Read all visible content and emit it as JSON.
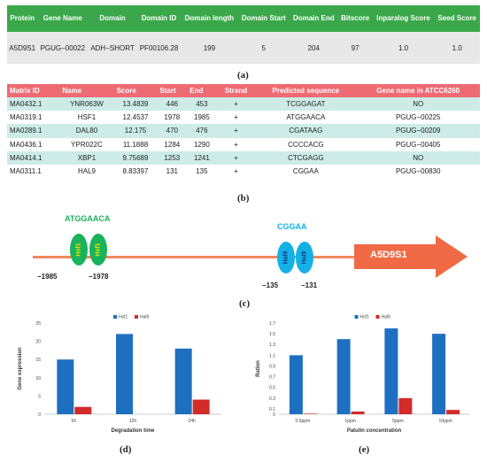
{
  "tableA": {
    "headers": [
      "Protein",
      "Gene Name",
      "Domain",
      "Domain ID",
      "Domain length",
      "Domain Start",
      "Domain End",
      "Bitscore",
      "Inparalog Score",
      "Seed Score"
    ],
    "row": [
      "A5D9S1",
      "PGUG−00022",
      "ADH−SHORT",
      "PF00106.28",
      "199",
      "5",
      "204",
      "97",
      "1.0",
      "1.0"
    ],
    "caption": "(a)"
  },
  "tableB": {
    "headers": [
      "Matrix ID",
      "Name",
      "Score",
      "Start",
      "End",
      "Strand",
      "Predicted sequence",
      "Gene name in ATCC6260"
    ],
    "rows": [
      [
        "MA0432.1",
        "YNR063W",
        "13.4839",
        "446",
        "453",
        "+",
        "TCGGAGAT",
        "NO"
      ],
      [
        "MA0319.1",
        "HSF1",
        "12.4537",
        "1978",
        "1985",
        "+",
        "ATGGAACA",
        "PGUG−00225"
      ],
      [
        "MA0289.1",
        "DAL80",
        "12.175",
        "470",
        "476",
        "+",
        "CGATAAG",
        "PGUG−00209"
      ],
      [
        "MA0436.1",
        "YPR022C",
        "11.1888",
        "1284",
        "1290",
        "+",
        "CCCCACG",
        "PGUG−00405"
      ],
      [
        "MA0414.1",
        "XBP1",
        "9.75689",
        "1253",
        "1241",
        "+",
        "CTCGAGG",
        "NO"
      ],
      [
        "MA0311.1",
        "HAL9",
        "8.83397",
        "131",
        "135",
        "+",
        "CGGAA",
        "PGUG−00830"
      ]
    ],
    "caption": "(b)"
  },
  "promoter": {
    "seq_left": "ATGGAACA",
    "seq_right": "CGGAA",
    "hsf_label": "Hsf1",
    "hal_label": "Hal9",
    "pos1": "−1985",
    "pos2": "−1978",
    "pos3": "−135",
    "pos4": "−131",
    "gene": "A5D9S1",
    "caption": "(c)",
    "colors": {
      "line": "#ef8a5e",
      "hsf": "#19b35a",
      "hal": "#13b1e6",
      "arrow": "#f06a45"
    }
  },
  "caption_d": "(d)",
  "caption_e": "(e)",
  "chart_data": [
    {
      "type": "bar",
      "categories": [
        "6h",
        "12h",
        "24h"
      ],
      "series": [
        {
          "name": "Hsf1",
          "values": [
            15,
            22,
            18
          ],
          "color": "#1f6fc0"
        },
        {
          "name": "Hal9",
          "values": [
            2,
            0,
            4
          ],
          "color": "#d32a2a"
        }
      ],
      "xlabel": "Degradation  time",
      "ylabel": "Gene expression",
      "ylim": [
        0,
        25
      ],
      "yticks": [
        "0",
        "5",
        "10",
        "15",
        "20",
        "25"
      ],
      "legend": "top-center"
    },
    {
      "type": "bar",
      "categories": [
        "0.5ppm",
        "1ppm",
        "5ppm",
        "10ppm"
      ],
      "series": [
        {
          "name": "Hsf1",
          "values": [
            1.1,
            1.4,
            1.6,
            1.5
          ],
          "color": "#1f6fc0"
        },
        {
          "name": "Hal9",
          "values": [
            0.01,
            0.05,
            0.3,
            0.08
          ],
          "color": "#d32a2a"
        }
      ],
      "xlabel": "Patulin concentration",
      "ylabel": "Ration",
      "ylim": [
        0,
        1.7
      ],
      "yticks": [
        "0",
        "0.1",
        "0.3",
        "0.5",
        "0.7",
        "0.9",
        "1.1",
        "1.3",
        "1.5",
        "1.7"
      ],
      "legend": "top-center"
    }
  ]
}
